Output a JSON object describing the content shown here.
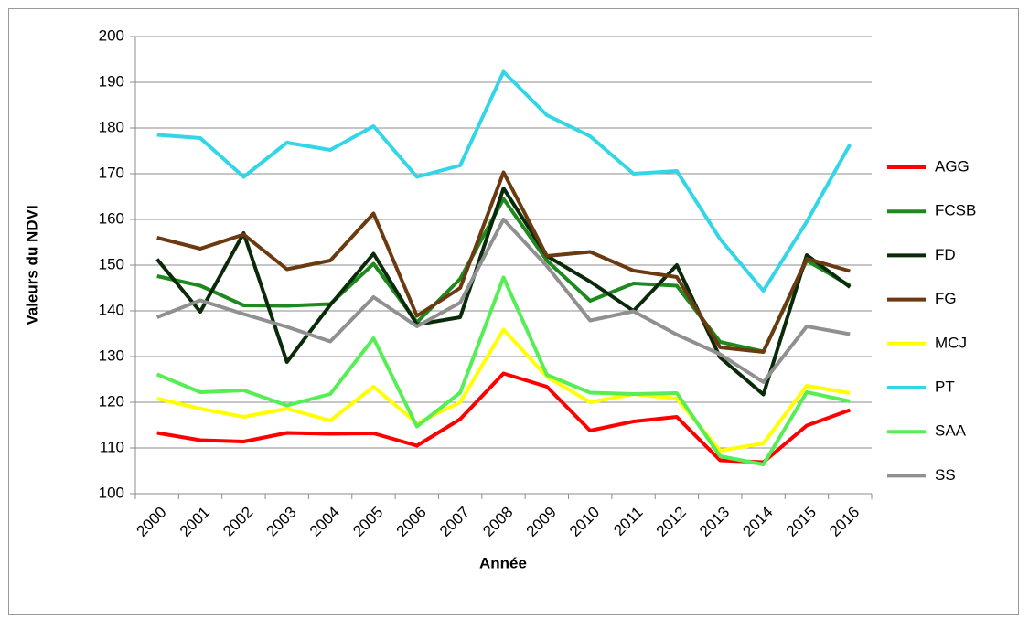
{
  "chart_data": {
    "type": "line",
    "xlabel": "Année",
    "ylabel": "Valeurs du NDVI",
    "categories": [
      "2000",
      "2001",
      "2002",
      "2003",
      "2004",
      "2005",
      "2006",
      "2007",
      "2008",
      "2009",
      "2010",
      "2011",
      "2012",
      "2013",
      "2014",
      "2015",
      "2016"
    ],
    "series": [
      {
        "name": "AGG",
        "color": "#ff0000",
        "values": [
          113.3,
          111.7,
          111.4,
          113.3,
          113.1,
          113.2,
          110.5,
          116.3,
          126.3,
          123.4,
          113.8,
          115.8,
          116.8,
          107.3,
          106.9,
          114.9,
          118.3
        ]
      },
      {
        "name": "FCSB",
        "color": "#1e8a1e",
        "values": [
          147.6,
          145.5,
          141.2,
          141.1,
          141.5,
          150.3,
          137.5,
          147.0,
          164.5,
          151.0,
          142.2,
          146.0,
          145.5,
          133.2,
          131.1,
          151.0,
          145.5
        ]
      },
      {
        "name": "FD",
        "color": "#0a2a0a",
        "values": [
          151.3,
          139.8,
          157.0,
          128.8,
          141.3,
          152.5,
          137.0,
          138.6,
          166.8,
          152.0,
          146.4,
          140.0,
          150.0,
          129.8,
          121.7,
          152.2,
          145.2
        ]
      },
      {
        "name": "FG",
        "color": "#6b3a10",
        "values": [
          156.0,
          153.6,
          156.7,
          149.1,
          151.0,
          161.3,
          138.9,
          145.0,
          170.3,
          152.0,
          152.9,
          148.8,
          147.4,
          132.0,
          131.0,
          151.4,
          148.7
        ]
      },
      {
        "name": "MCJ",
        "color": "#ffff00",
        "values": [
          120.8,
          118.6,
          116.8,
          118.6,
          116.0,
          123.4,
          115.4,
          120.0,
          135.9,
          125.6,
          120.0,
          121.8,
          120.8,
          109.4,
          111.0,
          123.6,
          122.0
        ]
      },
      {
        "name": "PT",
        "color": "#33d6e6",
        "values": [
          178.5,
          177.8,
          169.3,
          176.8,
          175.2,
          180.4,
          169.3,
          171.8,
          192.3,
          182.8,
          178.2,
          170.0,
          170.6,
          155.7,
          144.4,
          159.5,
          176.4
        ]
      },
      {
        "name": "SAA",
        "color": "#55ee55",
        "values": [
          126.1,
          122.2,
          122.6,
          119.3,
          121.8,
          134.0,
          114.7,
          122.1,
          147.3,
          126.0,
          122.1,
          121.8,
          122.0,
          108.2,
          106.4,
          122.2,
          120.2
        ]
      },
      {
        "name": "SS",
        "color": "#909090",
        "values": [
          138.6,
          142.3,
          139.3,
          136.5,
          133.3,
          143.0,
          136.6,
          141.8,
          160.0,
          149.8,
          137.9,
          139.9,
          134.8,
          130.5,
          124.4,
          136.6,
          134.9
        ]
      }
    ],
    "ylim": [
      100,
      200
    ],
    "yticks": [
      100,
      110,
      120,
      130,
      140,
      150,
      160,
      170,
      180,
      190,
      200
    ],
    "grid": true,
    "legend": "right"
  }
}
